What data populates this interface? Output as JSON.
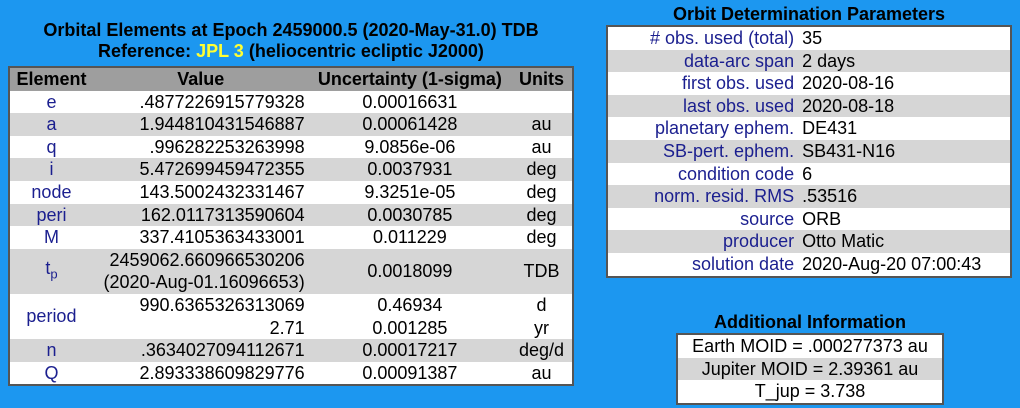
{
  "orbital_elements": {
    "title": "Orbital Elements at Epoch 2459000.5 (2020-May-31.0) TDB",
    "reference": {
      "prefix": "Reference:",
      "name": "JPL 3",
      "suffix": "(heliocentric ecliptic J2000)"
    },
    "header": [
      "Element",
      "Value",
      "Uncertainty (1-sigma)",
      "Units"
    ],
    "rows": [
      {
        "element": "e",
        "value": ".4877226915779328",
        "uncertainty": "0.00016631"
      },
      {
        "element": "a",
        "value": "1.944810431546887",
        "uncertainty": "0.00061428",
        "units": "au"
      },
      {
        "element": "q",
        "value": ".996282253263998",
        "uncertainty": "9.0856e-06",
        "units": "au"
      },
      {
        "element": "i",
        "value": "5.472699459472355",
        "uncertainty": "0.0037931",
        "units": "deg"
      },
      {
        "element": "node",
        "value": "143.5002432331467",
        "uncertainty": "9.3251e-05",
        "units": "deg"
      },
      {
        "element": "peri",
        "value": "162.0117313590604",
        "uncertainty": "0.0030785",
        "units": "deg"
      },
      {
        "element": "M",
        "value": "337.4105363433001",
        "uncertainty": "0.011229",
        "units": "deg"
      },
      {
        "element": "t",
        "element_sub": "p",
        "value": [
          "2459062.660966530206",
          "(2020-Aug-01.16096653)"
        ],
        "uncertainty": "0.0018099",
        "units": "TDB"
      },
      {
        "element": "period",
        "value": [
          "990.6365326313069",
          "2.71"
        ],
        "uncertainty": [
          "0.46934",
          "0.001285"
        ],
        "units": [
          "d",
          "yr"
        ]
      },
      {
        "element": "n",
        "value": ".3634027094112671",
        "uncertainty": "0.00017217",
        "units": "deg/d"
      },
      {
        "element": "Q",
        "value": "2.893338609829776",
        "uncertainty": "0.00091387",
        "units": "au"
      }
    ]
  },
  "orbit_determination": {
    "title": "Orbit Determination Parameters",
    "rows": [
      {
        "label": "# obs. used (total)",
        "value": "35"
      },
      {
        "label": "data-arc span",
        "value": "2 days"
      },
      {
        "label": "first obs. used",
        "value": "2020-08-16"
      },
      {
        "label": "last obs. used",
        "value": "2020-08-18"
      },
      {
        "label": "planetary ephem.",
        "value": "DE431"
      },
      {
        "label": "SB-pert. ephem.",
        "value": "SB431-N16"
      },
      {
        "label": "condition code",
        "value": "6"
      },
      {
        "label": "norm. resid. RMS",
        "value": ".53516"
      },
      {
        "label": "source",
        "value": "ORB"
      },
      {
        "label": "producer",
        "value": "Otto Matic"
      },
      {
        "label": "solution date",
        "value": "2020-Aug-20 07:00:43"
      }
    ]
  },
  "additional_information": {
    "title": "Additional Information",
    "lines": [
      "Earth MOID = .000277373 au",
      "Jupiter MOID = 2.39361 au",
      "T_jup = 3.738"
    ]
  }
}
